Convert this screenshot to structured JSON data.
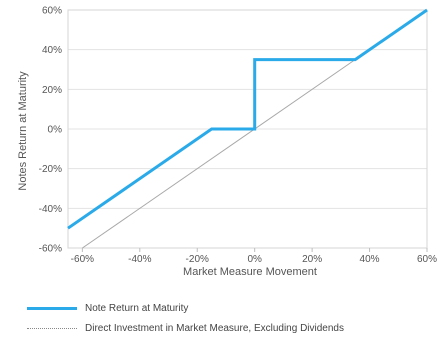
{
  "chart_data": {
    "type": "line",
    "xlabel": "Market Measure Movement",
    "ylabel": "Notes Return at Maturity",
    "xlim": [
      -65,
      60
    ],
    "ylim": [
      -60,
      60
    ],
    "x_ticks": [
      "-60%",
      "-40%",
      "-20%",
      "0%",
      "20%",
      "40%",
      "60%"
    ],
    "x_tick_values": [
      -60,
      -40,
      -20,
      0,
      20,
      40,
      60
    ],
    "y_ticks": [
      "60%",
      "40%",
      "20%",
      "0%",
      "-20%",
      "-40%",
      "-60%"
    ],
    "y_tick_values": [
      60,
      40,
      20,
      0,
      -20,
      -40,
      -60
    ],
    "grid": "horizontal",
    "legend_position": "bottom",
    "series": [
      {
        "name": "Note Return at Maturity",
        "color": "#2aaae8",
        "style": "solid",
        "points": [
          [
            -65,
            -50
          ],
          [
            -15,
            0
          ],
          [
            0,
            0
          ],
          [
            0,
            35
          ],
          [
            35,
            35
          ],
          [
            60,
            60
          ]
        ]
      },
      {
        "name": "Direct Investment in Market Measure, Excluding Dividends",
        "color": "#a8a8a8",
        "style": "dotted",
        "points": [
          [
            -60,
            -60
          ],
          [
            60,
            60
          ]
        ]
      }
    ]
  }
}
